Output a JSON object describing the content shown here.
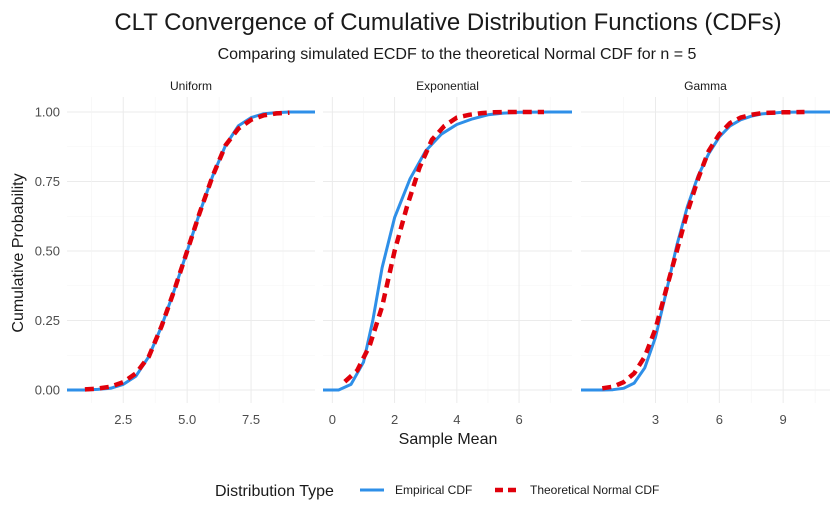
{
  "chart_data": {
    "type": "line",
    "title": "CLT Convergence of Cumulative Distribution Functions (CDFs)",
    "subtitle": "Comparing simulated ECDF to the theoretical Normal CDF for n = 5",
    "xlabel": "Sample Mean",
    "ylabel": "Cumulative Probability",
    "ylim": [
      0,
      1
    ],
    "y_ticks": [
      "0.00",
      "0.25",
      "0.50",
      "0.75",
      "1.00"
    ],
    "y_tick_values": [
      0,
      0.25,
      0.5,
      0.75,
      1.0
    ],
    "grid": true,
    "legend": {
      "title": "Distribution Type",
      "position": "bottom",
      "entries": [
        "Empirical CDF",
        "Theoretical Normal CDF"
      ]
    },
    "colors": {
      "empirical": "#2E8FE8",
      "theoretical": "#E0000B"
    },
    "panels": [
      {
        "name": "Uniform",
        "xlim": [
          0.3,
          10.0
        ],
        "x_ticks": [
          "2.5",
          "5.0",
          "7.5"
        ],
        "x_tick_values": [
          2.5,
          5.0,
          7.5
        ],
        "series": [
          {
            "name": "Empirical CDF",
            "x": [
              0.3,
              1.0,
              1.5,
              2.0,
              2.5,
              3.0,
              3.5,
              4.0,
              4.5,
              5.0,
              5.5,
              6.0,
              6.5,
              7.0,
              7.5,
              8.0,
              8.5,
              9.0,
              9.5,
              10.0
            ],
            "y": [
              0.0,
              0.0,
              0.002,
              0.006,
              0.02,
              0.05,
              0.12,
              0.23,
              0.36,
              0.5,
              0.64,
              0.77,
              0.88,
              0.95,
              0.98,
              0.994,
              0.998,
              1.0,
              1.0,
              1.0
            ]
          },
          {
            "name": "Theoretical Normal CDF",
            "x": [
              1.0,
              1.5,
              2.0,
              2.5,
              3.0,
              3.5,
              4.0,
              4.5,
              5.0,
              5.5,
              6.0,
              6.5,
              7.0,
              7.5,
              8.0,
              8.5,
              9.0
            ],
            "y": [
              0.002,
              0.005,
              0.012,
              0.028,
              0.06,
              0.12,
              0.23,
              0.36,
              0.5,
              0.64,
              0.77,
              0.88,
              0.94,
              0.972,
              0.988,
              0.995,
              0.998
            ]
          }
        ]
      },
      {
        "name": "Exponential",
        "xlim": [
          -0.3,
          7.7
        ],
        "x_ticks": [
          "0",
          "2",
          "4",
          "6"
        ],
        "x_tick_values": [
          0,
          2,
          4,
          6
        ],
        "series": [
          {
            "name": "Empirical CDF",
            "x": [
              -0.3,
              0.2,
              0.6,
              1.0,
              1.3,
              1.6,
              2.0,
              2.5,
              3.0,
              3.5,
              4.0,
              4.5,
              5.0,
              5.5,
              6.0,
              7.0,
              7.7
            ],
            "y": [
              0.0,
              0.0,
              0.02,
              0.1,
              0.25,
              0.44,
              0.62,
              0.76,
              0.86,
              0.92,
              0.955,
              0.975,
              0.99,
              0.996,
              0.999,
              1.0,
              1.0
            ]
          },
          {
            "name": "Theoretical Normal CDF",
            "x": [
              0.4,
              0.8,
              1.2,
              1.6,
              2.0,
              2.4,
              2.8,
              3.2,
              3.6,
              4.0,
              4.4,
              4.8,
              5.2,
              5.6,
              6.0,
              6.4,
              6.8
            ],
            "y": [
              0.03,
              0.07,
              0.16,
              0.3,
              0.5,
              0.66,
              0.8,
              0.9,
              0.95,
              0.98,
              0.99,
              0.996,
              0.999,
              1.0,
              1.0,
              1.0,
              1.0
            ]
          }
        ]
      },
      {
        "name": "Gamma",
        "xlim": [
          -0.5,
          11.2
        ],
        "x_ticks": [
          "3",
          "6",
          "9"
        ],
        "x_tick_values": [
          3,
          6,
          9
        ],
        "series": [
          {
            "name": "Empirical CDF",
            "x": [
              -0.5,
              0.5,
              1.0,
              1.5,
              2.0,
              2.5,
              3.0,
              3.5,
              4.0,
              4.5,
              5.0,
              5.5,
              6.0,
              6.5,
              7.0,
              7.5,
              8.0,
              9.0,
              10.0,
              11.2
            ],
            "y": [
              0.0,
              0.0,
              0.001,
              0.006,
              0.025,
              0.08,
              0.19,
              0.35,
              0.52,
              0.66,
              0.77,
              0.85,
              0.91,
              0.95,
              0.972,
              0.985,
              0.993,
              0.999,
              1.0,
              1.0
            ]
          },
          {
            "name": "Theoretical Normal CDF",
            "x": [
              0.5,
              1.0,
              1.5,
              2.0,
              2.5,
              3.0,
              3.5,
              4.0,
              4.5,
              5.0,
              5.5,
              6.0,
              6.5,
              7.0,
              7.5,
              8.0,
              9.0,
              10.0
            ],
            "y": [
              0.006,
              0.012,
              0.028,
              0.06,
              0.12,
              0.22,
              0.36,
              0.5,
              0.64,
              0.76,
              0.86,
              0.92,
              0.96,
              0.98,
              0.99,
              0.996,
              0.999,
              1.0
            ]
          }
        ]
      }
    ]
  }
}
